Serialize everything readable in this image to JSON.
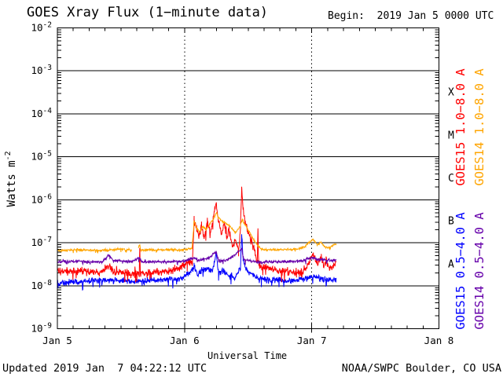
{
  "title": "GOES Xray Flux (1−minute data)",
  "begin_text": "Begin:  2019 Jan 5 0000 UTC",
  "footer": {
    "updated": "Updated 2019 Jan  7 04:22:12 UTC",
    "source": "NOAA/SWPC Boulder, CO USA"
  },
  "chart_data": {
    "type": "line",
    "title": "GOES Xray Flux (1-minute data)",
    "xlabel": "Universal Time",
    "ylabel_base": "Watts m",
    "ylabel_exp": "-2",
    "begin": "2019 Jan 5 0000 UTC",
    "x_range_hours": [
      0,
      72
    ],
    "x_minor_step_hours": 3,
    "y_log_range": [
      -9,
      -2
    ],
    "y_unit": "W m^-2 (log scale)",
    "grid": {
      "h_solid_decades": true,
      "v_dotted_hours": [
        24,
        48
      ]
    },
    "x_ticks": [
      {
        "label": "Jan 5",
        "hour": 0
      },
      {
        "label": "Jan 6",
        "hour": 24
      },
      {
        "label": "Jan 7",
        "hour": 48
      },
      {
        "label": "Jan 8",
        "hour": 72
      }
    ],
    "flare_classes": [
      {
        "label": "X",
        "log_center": -3.5
      },
      {
        "label": "M",
        "log_center": -4.5
      },
      {
        "label": "C",
        "log_center": -5.5
      },
      {
        "label": "B",
        "log_center": -6.5
      },
      {
        "label": "A",
        "log_center": -7.5
      }
    ],
    "series": [
      {
        "label": "GOES15 1.0−8.0 A",
        "satellite": "GOES15",
        "band_angstrom": "1.0-8.0",
        "color": "#ff0000",
        "noise": 0.13,
        "points": [
          [
            0,
            2.4e-08
          ],
          [
            2,
            2.1e-08
          ],
          [
            5,
            2.3e-08
          ],
          [
            8,
            2e-08
          ],
          [
            9.6,
            2.8e-08
          ],
          [
            11,
            2.1e-08
          ],
          [
            14,
            1.9e-08
          ],
          [
            15.45,
            1.9e-08
          ],
          [
            15.55,
            7.5e-08
          ],
          [
            15.65,
            1.9e-08
          ],
          [
            18,
            2e-08
          ],
          [
            21,
            2.2e-08
          ],
          [
            23,
            2.6e-08
          ],
          [
            24.5,
            3.4e-08
          ],
          [
            25.5,
            3.6e-08
          ],
          [
            25.8,
            3.4e-07
          ],
          [
            26.3,
            2e-07
          ],
          [
            26.7,
            1.3e-07
          ],
          [
            27.2,
            2.7e-07
          ],
          [
            27.7,
            1.1e-07
          ],
          [
            28.3,
            3.1e-07
          ],
          [
            28.9,
            1.7e-07
          ],
          [
            29.5,
            4.2e-07
          ],
          [
            29.95,
            8.9e-07
          ],
          [
            30.4,
            3.2e-07
          ],
          [
            31.0,
            1.6e-07
          ],
          [
            31.5,
            2.8e-07
          ],
          [
            32.0,
            1.3e-07
          ],
          [
            32.4,
            2.2e-07
          ],
          [
            33.0,
            8e-08
          ],
          [
            33.6,
            1.1e-07
          ],
          [
            34.2,
            6.3e-08
          ],
          [
            34.55,
            2e-07
          ],
          [
            34.78,
            1.9e-06
          ],
          [
            35.05,
            6.3e-07
          ],
          [
            35.4,
            3.2e-07
          ],
          [
            35.9,
            1.8e-07
          ],
          [
            36.6,
            1.1e-07
          ],
          [
            37.3,
            6.3e-08
          ],
          [
            37.7,
            3.2e-08
          ],
          [
            37.85,
            2e-07
          ],
          [
            38.0,
            3e-08
          ],
          [
            39,
            2.7e-08
          ],
          [
            41,
            2.4e-08
          ],
          [
            44,
            2.1e-08
          ],
          [
            46,
            1.9e-08
          ],
          [
            47.3,
            3e-08
          ],
          [
            48.3,
            5.6e-08
          ],
          [
            49.2,
            3.2e-08
          ],
          [
            49.8,
            4.5e-08
          ],
          [
            50.3,
            2.7e-08
          ],
          [
            50.8,
            4.2e-08
          ],
          [
            51.4,
            2.5e-08
          ],
          [
            52.1,
            2.8e-08
          ],
          [
            52.6,
            3.6e-08
          ]
        ]
      },
      {
        "label": "GOES14 1.0−8.0 A",
        "satellite": "GOES14",
        "band_angstrom": "1.0-8.0",
        "color": "#ffa500",
        "noise": 0.04,
        "gaps": [
          [
            14.05,
            15.25
          ]
        ],
        "points": [
          [
            0,
            6.6e-08
          ],
          [
            4,
            6.9e-08
          ],
          [
            8,
            6.6e-08
          ],
          [
            12,
            7.1e-08
          ],
          [
            14.0,
            6.8e-08
          ],
          [
            15.2,
            6.8e-08
          ],
          [
            15.55,
            9.5e-08
          ],
          [
            15.7,
            6.8e-08
          ],
          [
            19,
            6.9e-08
          ],
          [
            23,
            6.8e-08
          ],
          [
            25.4,
            7.4e-08
          ],
          [
            25.8,
            3.2e-07
          ],
          [
            26.3,
            2.2e-07
          ],
          [
            26.9,
            1.8e-07
          ],
          [
            27.4,
            2.4e-07
          ],
          [
            28.1,
            2e-07
          ],
          [
            28.7,
            2.7e-07
          ],
          [
            29.4,
            3.5e-07
          ],
          [
            30.0,
            5e-07
          ],
          [
            30.7,
            3.5e-07
          ],
          [
            31.6,
            2.9e-07
          ],
          [
            32.6,
            2.4e-07
          ],
          [
            33.6,
            1.7e-07
          ],
          [
            34.5,
            2.4e-07
          ],
          [
            34.85,
            3.5e-07
          ],
          [
            35.3,
            2.8e-07
          ],
          [
            36.0,
            2e-07
          ],
          [
            36.8,
            1.3e-07
          ],
          [
            37.6,
            9.5e-08
          ],
          [
            38.3,
            7.4e-08
          ],
          [
            39.0,
            6.8e-08
          ],
          [
            42,
            6.9e-08
          ],
          [
            45,
            7.1e-08
          ],
          [
            46.6,
            7.9e-08
          ],
          [
            47.6,
            1.05e-07
          ],
          [
            48.3,
            1.2e-07
          ],
          [
            49.0,
            9e-08
          ],
          [
            49.7,
            1.05e-07
          ],
          [
            50.5,
            8e-08
          ],
          [
            51.3,
            7.6e-08
          ],
          [
            52.1,
            8.9e-08
          ],
          [
            52.6,
            9.5e-08
          ]
        ]
      },
      {
        "label": "GOES15 0.5−4.0 A",
        "satellite": "GOES15",
        "band_angstrom": "0.5-4.0",
        "color": "#0000ff",
        "noise": 0.1,
        "points": [
          [
            0,
            1.15e-08
          ],
          [
            3,
            1.25e-08
          ],
          [
            6,
            1.3e-08
          ],
          [
            9,
            1.35e-08
          ],
          [
            12,
            1.35e-08
          ],
          [
            14,
            1.25e-08
          ],
          [
            16,
            1.3e-08
          ],
          [
            19,
            1.35e-08
          ],
          [
            22,
            1.4e-08
          ],
          [
            23.5,
            1.5e-08
          ],
          [
            24.5,
            1.8e-08
          ],
          [
            25.8,
            2.8e-08
          ],
          [
            26.5,
            1.8e-08
          ],
          [
            27.2,
            2.2e-08
          ],
          [
            28.3,
            2.5e-08
          ],
          [
            29.3,
            2.2e-08
          ],
          [
            29.95,
            6.3e-08
          ],
          [
            30.4,
            2e-08
          ],
          [
            31.5,
            2.2e-08
          ],
          [
            32.5,
            1.6e-08
          ],
          [
            33.5,
            1.5e-08
          ],
          [
            34.55,
            2.5e-08
          ],
          [
            34.78,
            1.6e-07
          ],
          [
            35.05,
            4e-08
          ],
          [
            35.6,
            2.4e-08
          ],
          [
            36.5,
            2e-08
          ],
          [
            37.5,
            1.6e-08
          ],
          [
            38.5,
            1.4e-08
          ],
          [
            41,
            1.35e-08
          ],
          [
            44,
            1.3e-08
          ],
          [
            46,
            1.4e-08
          ],
          [
            47.5,
            1.6e-08
          ],
          [
            48.5,
            1.65e-08
          ],
          [
            50,
            1.45e-08
          ],
          [
            51,
            1.35e-08
          ],
          [
            52.6,
            1.35e-08
          ]
        ]
      },
      {
        "label": "GOES14 0.5−4.0 A",
        "satellite": "GOES14",
        "band_angstrom": "0.5-4.0",
        "color": "#6600aa",
        "noise": 0.05,
        "points": [
          [
            0,
            3.6e-08
          ],
          [
            4,
            3.7e-08
          ],
          [
            8.5,
            3.6e-08
          ],
          [
            9.6,
            5.2e-08
          ],
          [
            10.6,
            3.9e-08
          ],
          [
            14,
            3.6e-08
          ],
          [
            15.5,
            4.4e-08
          ],
          [
            16,
            3.6e-08
          ],
          [
            20,
            3.6e-08
          ],
          [
            24,
            3.7e-08
          ],
          [
            25.8,
            4.5e-08
          ],
          [
            26.6,
            4e-08
          ],
          [
            28.3,
            4.2e-08
          ],
          [
            29.95,
            6.3e-08
          ],
          [
            30.4,
            3.9e-08
          ],
          [
            32,
            3.9e-08
          ],
          [
            34.78,
            7.1e-08
          ],
          [
            35.2,
            3.9e-08
          ],
          [
            38,
            3.6e-08
          ],
          [
            42,
            3.6e-08
          ],
          [
            46,
            3.7e-08
          ],
          [
            48,
            4.5e-08
          ],
          [
            49.5,
            4.1e-08
          ],
          [
            51,
            3.9e-08
          ],
          [
            52.6,
            4e-08
          ]
        ]
      }
    ]
  }
}
